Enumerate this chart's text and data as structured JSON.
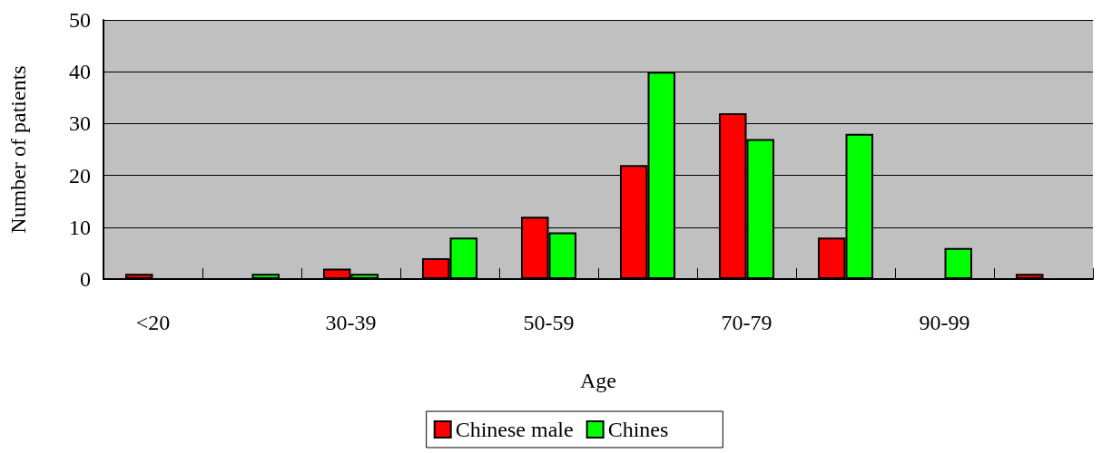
{
  "chart_data": {
    "type": "bar",
    "xlabel": "Age",
    "ylabel": "Number of patients",
    "categories": [
      "<20",
      null,
      "30-39",
      null,
      "50-59",
      null,
      "70-79",
      null,
      "90-99",
      null
    ],
    "series": [
      {
        "name": "Chinese male",
        "color": "#ff0000",
        "values": [
          1,
          null,
          2,
          4,
          12,
          22,
          32,
          8,
          null,
          1
        ]
      },
      {
        "name": "Chines",
        "color": "#00ff00",
        "values": [
          null,
          1,
          1,
          8,
          9,
          40,
          27,
          28,
          6,
          null
        ]
      }
    ],
    "ylim": [
      0,
      50
    ],
    "yticks": [
      0,
      10,
      20,
      30,
      40,
      50
    ],
    "grid": "y",
    "legend": "bottom"
  }
}
